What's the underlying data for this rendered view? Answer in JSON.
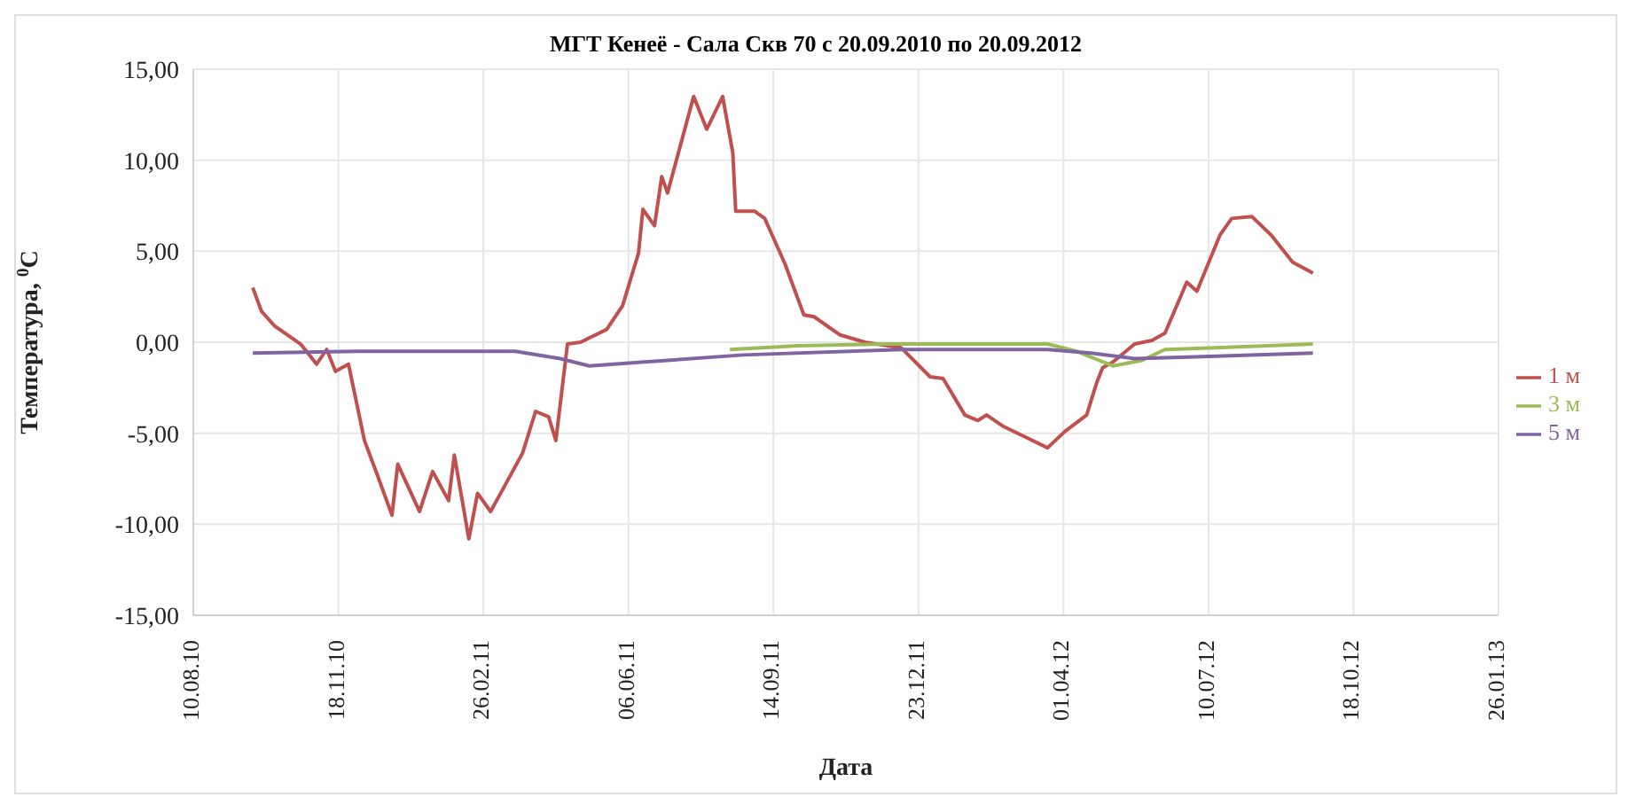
{
  "chart_data": {
    "type": "line",
    "title": "МГТ Кенеё - Сала Скв 70 с 20.09.2010 по 20.09.2012",
    "xlabel": "Дата",
    "ylabel": "Температура, $^{0}$С",
    "xlim": [
      "2010-08-10",
      "2013-01-26"
    ],
    "xticks": [
      {
        "value": "2010-08-10",
        "label": "10.08.10"
      },
      {
        "value": "2010-11-18",
        "label": "18.11.10"
      },
      {
        "value": "2011-02-26",
        "label": "26.02.11"
      },
      {
        "value": "2011-06-06",
        "label": "06.06.11"
      },
      {
        "value": "2011-09-14",
        "label": "14.09.11"
      },
      {
        "value": "2011-12-23",
        "label": "23.12.11"
      },
      {
        "value": "2012-04-01",
        "label": "01.04.12"
      },
      {
        "value": "2012-07-10",
        "label": "10.07.12"
      },
      {
        "value": "2012-10-18",
        "label": "18.10.12"
      },
      {
        "value": "2013-01-26",
        "label": "26.01.13"
      }
    ],
    "ylim": [
      -15,
      15
    ],
    "yticks": [
      {
        "value": -15,
        "label": "-15,00"
      },
      {
        "value": -10,
        "label": "-10,00"
      },
      {
        "value": -5,
        "label": "-5,00"
      },
      {
        "value": 0,
        "label": "0,00"
      },
      {
        "value": 5,
        "label": "5,00"
      },
      {
        "value": 10,
        "label": "10,00"
      },
      {
        "value": 15,
        "label": "15,00"
      }
    ],
    "grid": true,
    "legend": "right",
    "marker": "none",
    "line_style": "solid",
    "series": [
      {
        "name": "1 м",
        "color": "#c0504d",
        "x": [
          "2010-09-20",
          "2010-09-26",
          "2010-10-05",
          "2010-10-23",
          "2010-11-03",
          "2010-11-10",
          "2010-11-16",
          "2010-11-25",
          "2010-12-06",
          "2010-12-14",
          "2010-12-25",
          "2010-12-29",
          "2011-01-13",
          "2011-01-22",
          "2011-02-02",
          "2011-02-06",
          "2011-02-16",
          "2011-02-22",
          "2011-03-03",
          "2011-03-14",
          "2011-03-25",
          "2011-04-03",
          "2011-04-12",
          "2011-04-17",
          "2011-04-25",
          "2011-05-04",
          "2011-05-22",
          "2011-06-02",
          "2011-06-13",
          "2011-06-16",
          "2011-06-24",
          "2011-06-29",
          "2011-07-03",
          "2011-07-21",
          "2011-07-30",
          "2011-08-10",
          "2011-08-17",
          "2011-08-19",
          "2011-09-01",
          "2011-09-08",
          "2011-09-22",
          "2011-10-05",
          "2011-10-12",
          "2011-10-30",
          "2011-11-16",
          "2011-12-11",
          "2011-12-31",
          "2012-01-09",
          "2012-01-24",
          "2012-02-02",
          "2012-02-08",
          "2012-02-19",
          "2012-03-08",
          "2012-03-21",
          "2012-04-02",
          "2012-04-17",
          "2012-04-24",
          "2012-04-28",
          "2012-05-05",
          "2012-05-20",
          "2012-06-01",
          "2012-06-10",
          "2012-06-25",
          "2012-07-02",
          "2012-07-18",
          "2012-07-26",
          "2012-08-09",
          "2012-08-22",
          "2012-09-06",
          "2012-09-20"
        ],
        "values": [
          3.0,
          1.7,
          0.9,
          -0.1,
          -1.2,
          -0.4,
          -1.6,
          -1.2,
          -5.4,
          -7.1,
          -9.5,
          -6.7,
          -9.3,
          -7.1,
          -8.7,
          -6.2,
          -10.8,
          -8.3,
          -9.3,
          -7.7,
          -6.1,
          -3.8,
          -4.1,
          -5.4,
          -0.1,
          0.0,
          0.7,
          2.0,
          4.9,
          7.3,
          6.4,
          9.1,
          8.2,
          13.5,
          11.7,
          13.5,
          10.4,
          7.2,
          7.2,
          6.8,
          4.3,
          1.5,
          1.4,
          0.4,
          0.0,
          -0.3,
          -1.9,
          -2.0,
          -4.0,
          -4.3,
          -4.0,
          -4.6,
          -5.3,
          -5.8,
          -4.9,
          -4.0,
          -2.2,
          -1.4,
          -1.1,
          -0.1,
          0.1,
          0.5,
          3.3,
          2.8,
          5.9,
          6.8,
          6.9,
          5.9,
          4.4,
          3.8
        ]
      },
      {
        "name": "3 м",
        "color": "#9bbb59",
        "x": [
          "2011-08-15",
          "2011-10-01",
          "2011-12-01",
          "2012-03-21",
          "2012-04-10",
          "2012-05-05",
          "2012-05-25",
          "2012-06-10",
          "2012-07-15",
          "2012-09-20"
        ],
        "values": [
          -0.4,
          -0.2,
          -0.1,
          -0.1,
          -0.5,
          -1.3,
          -1.0,
          -0.4,
          -0.3,
          -0.1
        ]
      },
      {
        "name": "5 м",
        "color": "#8064a2",
        "x": [
          "2010-09-20",
          "2010-12-01",
          "2011-03-20",
          "2011-04-20",
          "2011-05-10",
          "2011-06-15",
          "2011-08-24",
          "2011-12-11",
          "2012-03-21",
          "2012-04-20",
          "2012-05-20",
          "2012-07-01",
          "2012-09-20"
        ],
        "values": [
          -0.6,
          -0.5,
          -0.5,
          -0.9,
          -1.3,
          -1.1,
          -0.7,
          -0.4,
          -0.4,
          -0.6,
          -0.9,
          -0.8,
          -0.6
        ]
      }
    ]
  }
}
